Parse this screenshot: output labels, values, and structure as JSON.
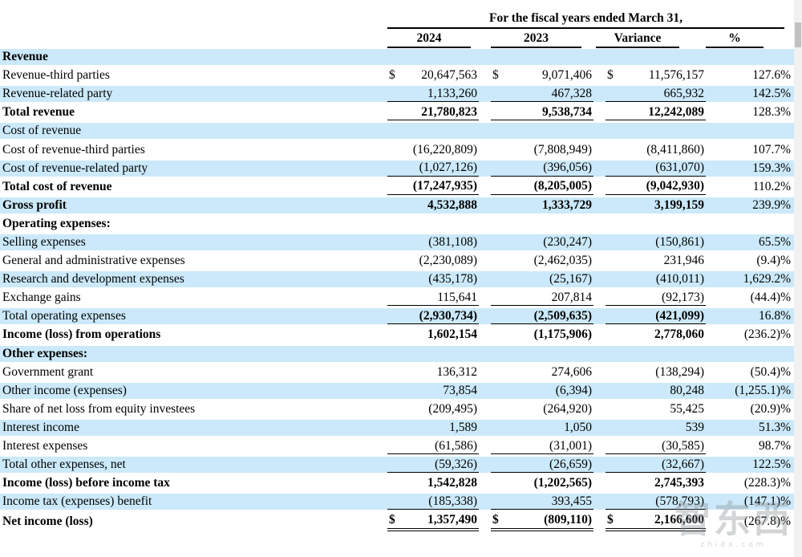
{
  "dollar_sign": "$",
  "header": {
    "title": "For the fiscal years ended March 31,",
    "columns": [
      "2024",
      "2023",
      "Variance",
      "%"
    ]
  },
  "rows": [
    {
      "label": "Revenue",
      "shade": "blue",
      "bold_label": true,
      "bold_values": false,
      "dollar": false,
      "underline": "none",
      "y2024": "",
      "y2023": "",
      "variance": "",
      "pct": ""
    },
    {
      "label": "Revenue-third parties",
      "shade": "white",
      "bold_label": false,
      "bold_values": false,
      "dollar": true,
      "underline": "none",
      "y2024": "20,647,563",
      "y2023": "9,071,406",
      "variance": "11,576,157",
      "pct": "127.6%"
    },
    {
      "label": "Revenue-related party",
      "shade": "blue",
      "bold_label": false,
      "bold_values": false,
      "dollar": false,
      "underline": "single",
      "y2024": "1,133,260",
      "y2023": "467,328",
      "variance": "665,932",
      "pct": "142.5%"
    },
    {
      "label": "Total revenue",
      "shade": "white",
      "bold_label": true,
      "bold_values": true,
      "dollar": false,
      "underline": "single",
      "y2024": "21,780,823",
      "y2023": "9,538,734",
      "variance": "12,242,089",
      "pct": "128.3%"
    },
    {
      "label": "Cost of revenue",
      "shade": "blue",
      "bold_label": false,
      "bold_values": false,
      "dollar": false,
      "underline": "none",
      "y2024": "",
      "y2023": "",
      "variance": "",
      "pct": ""
    },
    {
      "label": "Cost of revenue-third parties",
      "shade": "white",
      "bold_label": false,
      "bold_values": false,
      "dollar": false,
      "underline": "none",
      "y2024": "(16,220,809)",
      "y2023": "(7,808,949)",
      "variance": "(8,411,860)",
      "pct": "107.7%"
    },
    {
      "label": "Cost of revenue-related party",
      "shade": "blue",
      "bold_label": false,
      "bold_values": false,
      "dollar": false,
      "underline": "single",
      "y2024": "(1,027,126)",
      "y2023": "(396,056)",
      "variance": "(631,070)",
      "pct": "159.3%"
    },
    {
      "label": "Total cost of revenue",
      "shade": "white",
      "bold_label": true,
      "bold_values": true,
      "dollar": false,
      "underline": "single",
      "y2024": "(17,247,935)",
      "y2023": "(8,205,005)",
      "variance": "(9,042,930)",
      "pct": "110.2%"
    },
    {
      "label": "Gross profit",
      "shade": "blue",
      "bold_label": true,
      "bold_values": true,
      "dollar": false,
      "underline": "none",
      "y2024": "4,532,888",
      "y2023": "1,333,729",
      "variance": "3,199,159",
      "pct": "239.9%"
    },
    {
      "label": "Operating expenses:",
      "shade": "white",
      "bold_label": true,
      "bold_values": false,
      "dollar": false,
      "underline": "none",
      "y2024": "",
      "y2023": "",
      "variance": "",
      "pct": ""
    },
    {
      "label": "Selling expenses",
      "shade": "blue",
      "bold_label": false,
      "bold_values": false,
      "dollar": false,
      "underline": "none",
      "y2024": "(381,108)",
      "y2023": "(230,247)",
      "variance": "(150,861)",
      "pct": "65.5%"
    },
    {
      "label": "General and administrative expenses",
      "shade": "white",
      "bold_label": false,
      "bold_values": false,
      "dollar": false,
      "underline": "none",
      "y2024": "(2,230,089)",
      "y2023": "(2,462,035)",
      "variance": "231,946",
      "pct": "(9.4)%"
    },
    {
      "label": "Research and development expenses",
      "shade": "blue",
      "bold_label": false,
      "bold_values": false,
      "dollar": false,
      "underline": "none",
      "y2024": "(435,178)",
      "y2023": "(25,167)",
      "variance": "(410,011)",
      "pct": "1,629.2%"
    },
    {
      "label": "Exchange gains",
      "shade": "white",
      "bold_label": false,
      "bold_values": false,
      "dollar": false,
      "underline": "single",
      "y2024": "115,641",
      "y2023": "207,814",
      "variance": "(92,173)",
      "pct": "(44.4)%"
    },
    {
      "label": "Total operating expenses",
      "shade": "blue",
      "bold_label": false,
      "bold_values": true,
      "dollar": false,
      "underline": "single",
      "y2024": "(2,930,734)",
      "y2023": "(2,509,635)",
      "variance": "(421,099)",
      "pct": "16.8%"
    },
    {
      "label": "Income (loss) from operations",
      "shade": "white",
      "bold_label": true,
      "bold_values": true,
      "dollar": false,
      "underline": "none",
      "y2024": "1,602,154",
      "y2023": "(1,175,906)",
      "variance": "2,778,060",
      "pct": "(236.2)%"
    },
    {
      "label": "Other expenses:",
      "shade": "blue",
      "bold_label": true,
      "bold_values": false,
      "dollar": false,
      "underline": "none",
      "y2024": "",
      "y2023": "",
      "variance": "",
      "pct": ""
    },
    {
      "label": "Government grant",
      "shade": "white",
      "bold_label": false,
      "bold_values": false,
      "dollar": false,
      "underline": "none",
      "y2024": "136,312",
      "y2023": "274,606",
      "variance": "(138,294)",
      "pct": "(50.4)%"
    },
    {
      "label": "Other income (expenses)",
      "shade": "blue",
      "bold_label": false,
      "bold_values": false,
      "dollar": false,
      "underline": "none",
      "y2024": "73,854",
      "y2023": "(6,394)",
      "variance": "80,248",
      "pct": "(1,255.1)%"
    },
    {
      "label": "Share of net loss from equity investees",
      "shade": "white",
      "bold_label": false,
      "bold_values": false,
      "dollar": false,
      "underline": "none",
      "y2024": "(209,495)",
      "y2023": "(264,920)",
      "variance": "55,425",
      "pct": "(20.9)%"
    },
    {
      "label": "Interest income",
      "shade": "blue",
      "bold_label": false,
      "bold_values": false,
      "dollar": false,
      "underline": "none",
      "y2024": "1,589",
      "y2023": "1,050",
      "variance": "539",
      "pct": "51.3%"
    },
    {
      "label": "Interest expenses",
      "shade": "white",
      "bold_label": false,
      "bold_values": false,
      "dollar": false,
      "underline": "single",
      "y2024": "(61,586)",
      "y2023": "(31,001)",
      "variance": "(30,585)",
      "pct": "98.7%"
    },
    {
      "label": "Total other expenses, net",
      "shade": "blue",
      "bold_label": false,
      "bold_values": false,
      "dollar": false,
      "underline": "single",
      "y2024": "(59,326)",
      "y2023": "(26,659)",
      "variance": "(32,667)",
      "pct": "122.5%"
    },
    {
      "label": "Income (loss) before income tax",
      "shade": "white",
      "bold_label": true,
      "bold_values": true,
      "dollar": false,
      "underline": "none",
      "y2024": "1,542,828",
      "y2023": "(1,202,565)",
      "variance": "2,745,393",
      "pct": "(228.3)%"
    },
    {
      "label": "Income tax (expenses) benefit",
      "shade": "blue",
      "bold_label": false,
      "bold_values": false,
      "dollar": false,
      "underline": "single",
      "y2024": "(185,338)",
      "y2023": "393,455",
      "variance": "(578,793)",
      "pct": "(147.1)%"
    },
    {
      "label": "Net income (loss)",
      "shade": "white",
      "bold_label": true,
      "bold_values": true,
      "dollar": true,
      "underline": "double",
      "y2024": "1,357,490",
      "y2023": "(809,110)",
      "variance": "2,166,600",
      "pct": "(267.8)%"
    }
  ],
  "watermark": {
    "logo": "智东西",
    "domain": "zhidx.com"
  },
  "colors": {
    "row_highlight": "#cbe9fa",
    "text": "#000000",
    "rule": "#000000",
    "scrollbar_track": "#f1f1f1",
    "scrollbar_thumb": "#c1c1c1",
    "watermark": "#8a9096"
  }
}
